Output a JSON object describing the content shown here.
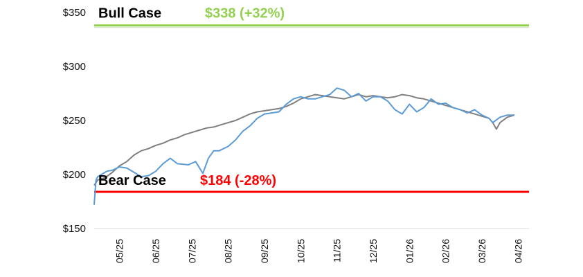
{
  "chart_data": {
    "type": "line",
    "title": "",
    "xlabel": "",
    "ylabel": "",
    "ylim": [
      150,
      350
    ],
    "y_ticks": [
      150,
      200,
      250,
      300,
      350
    ],
    "y_tick_labels": [
      "$150",
      "$200",
      "$250",
      "$300",
      "$350"
    ],
    "x_tick_labels": [
      "05/25",
      "06/25",
      "07/25",
      "08/25",
      "09/25",
      "10/25",
      "11/25",
      "12/25",
      "01/26",
      "02/26",
      "03/26",
      "04/26"
    ],
    "x_range": [
      0,
      12
    ],
    "reference_lines": [
      {
        "name": "Bull Case",
        "label": "Bull Case",
        "value_text": "$338 (+32%)",
        "y": 338,
        "color": "#92d050"
      },
      {
        "name": "Bear Case",
        "label": "Bear Case",
        "value_text": "$184 (-28%)",
        "y": 184,
        "color": "#ff0000"
      }
    ],
    "series": [
      {
        "name": "blue-series",
        "color": "#5b9bd5",
        "x": [
          0,
          0.05,
          0.1,
          0.2,
          0.35,
          0.5,
          0.7,
          0.9,
          1.1,
          1.3,
          1.5,
          1.7,
          1.9,
          2.1,
          2.3,
          2.6,
          2.8,
          3.0,
          3.15,
          3.3,
          3.45,
          3.7,
          3.9,
          4.1,
          4.3,
          4.5,
          4.7,
          4.9,
          5.1,
          5.3,
          5.5,
          5.7,
          5.9,
          6.1,
          6.3,
          6.5,
          6.7,
          6.9,
          7.1,
          7.3,
          7.5,
          7.7,
          7.9,
          8.1,
          8.3,
          8.5,
          8.7,
          8.9,
          9.1,
          9.3,
          9.5,
          9.7,
          9.9,
          10.1,
          10.3,
          10.5,
          10.7,
          10.9,
          11.0,
          11.2,
          11.4,
          11.6
        ],
        "values": [
          172,
          195,
          198,
          200,
          203,
          204,
          207,
          206,
          202,
          198,
          199,
          203,
          210,
          215,
          210,
          209,
          212,
          201,
          215,
          222,
          222,
          226,
          232,
          240,
          245,
          252,
          256,
          257,
          258,
          265,
          270,
          272,
          270,
          270,
          272,
          274,
          280,
          278,
          272,
          275,
          268,
          272,
          272,
          268,
          260,
          256,
          265,
          258,
          262,
          270,
          265,
          266,
          262,
          260,
          257,
          260,
          255,
          252,
          248,
          253,
          255,
          255
        ]
      },
      {
        "name": "gray-series",
        "color": "#7f7f7f",
        "x": [
          0,
          0.1,
          0.3,
          0.5,
          0.7,
          0.9,
          1.1,
          1.3,
          1.5,
          1.7,
          1.9,
          2.1,
          2.3,
          2.5,
          2.7,
          2.9,
          3.1,
          3.3,
          3.5,
          3.7,
          3.9,
          4.1,
          4.3,
          4.5,
          4.7,
          4.9,
          5.1,
          5.3,
          5.5,
          5.7,
          5.9,
          6.1,
          6.3,
          6.5,
          6.7,
          6.9,
          7.1,
          7.3,
          7.5,
          7.7,
          7.9,
          8.1,
          8.3,
          8.5,
          8.7,
          8.9,
          9.1,
          9.3,
          9.5,
          9.7,
          9.9,
          10.1,
          10.3,
          10.5,
          10.7,
          10.9,
          11.0,
          11.1,
          11.2,
          11.4,
          11.6
        ],
        "values": [
          190,
          195,
          197,
          202,
          208,
          212,
          218,
          222,
          224,
          227,
          229,
          232,
          234,
          237,
          239,
          241,
          243,
          244,
          246,
          248,
          250,
          253,
          256,
          258,
          259,
          260,
          261,
          263,
          266,
          270,
          272,
          274,
          273,
          272,
          271,
          270,
          272,
          274,
          272,
          273,
          272,
          271,
          272,
          274,
          273,
          271,
          270,
          268,
          266,
          264,
          262,
          260,
          258,
          256,
          254,
          252,
          248,
          242,
          248,
          253,
          255
        ]
      }
    ]
  }
}
